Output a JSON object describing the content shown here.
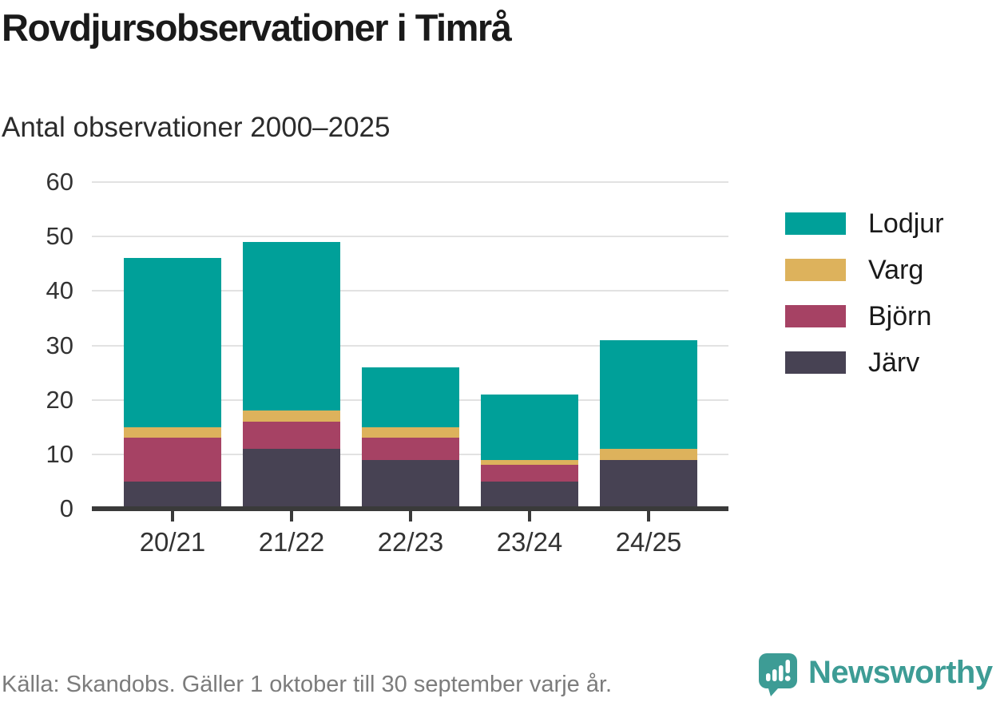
{
  "header": {
    "title": "Rovdjursobservationer i Timrå",
    "subtitle": "Antal observationer 2000–2025"
  },
  "chart_data": {
    "type": "bar",
    "stacked": true,
    "title": "Rovdjursobservationer i Timrå",
    "subtitle": "Antal observationer 2000–2025",
    "categories": [
      "20/21",
      "21/22",
      "22/23",
      "23/24",
      "24/25"
    ],
    "series": [
      {
        "name": "Järv",
        "color": "#474253",
        "values": [
          5,
          11,
          9,
          5,
          9
        ]
      },
      {
        "name": "Björn",
        "color": "#a64264",
        "values": [
          8,
          5,
          4,
          3,
          0
        ]
      },
      {
        "name": "Varg",
        "color": "#ddb25c",
        "values": [
          2,
          2,
          2,
          1,
          2
        ]
      },
      {
        "name": "Lodjur",
        "color": "#00a099",
        "values": [
          31,
          31,
          11,
          12,
          20
        ]
      }
    ],
    "totals": [
      46,
      49,
      26,
      21,
      31
    ],
    "xlabel": "",
    "ylabel": "",
    "ylim": [
      0,
      60
    ],
    "yticks": [
      0,
      10,
      20,
      30,
      40,
      50,
      60
    ],
    "grid": true,
    "legend_position": "right",
    "legend_order": [
      "Lodjur",
      "Varg",
      "Björn",
      "Järv"
    ]
  },
  "footer": {
    "source": "Källa: Skandobs. Gäller 1 oktober till 30 september varje år.",
    "brand": "Newsworthy"
  },
  "icons": {
    "brand_logo": "newsworthy-bubble-chart-icon"
  },
  "colors": {
    "accent_teal": "#00a099",
    "brand_teal": "#3d9c95",
    "gridline": "#e2e2e2",
    "axis": "#3a3a3a",
    "text_dark": "#1a1a1a",
    "text_muted": "#7c7c7c"
  }
}
